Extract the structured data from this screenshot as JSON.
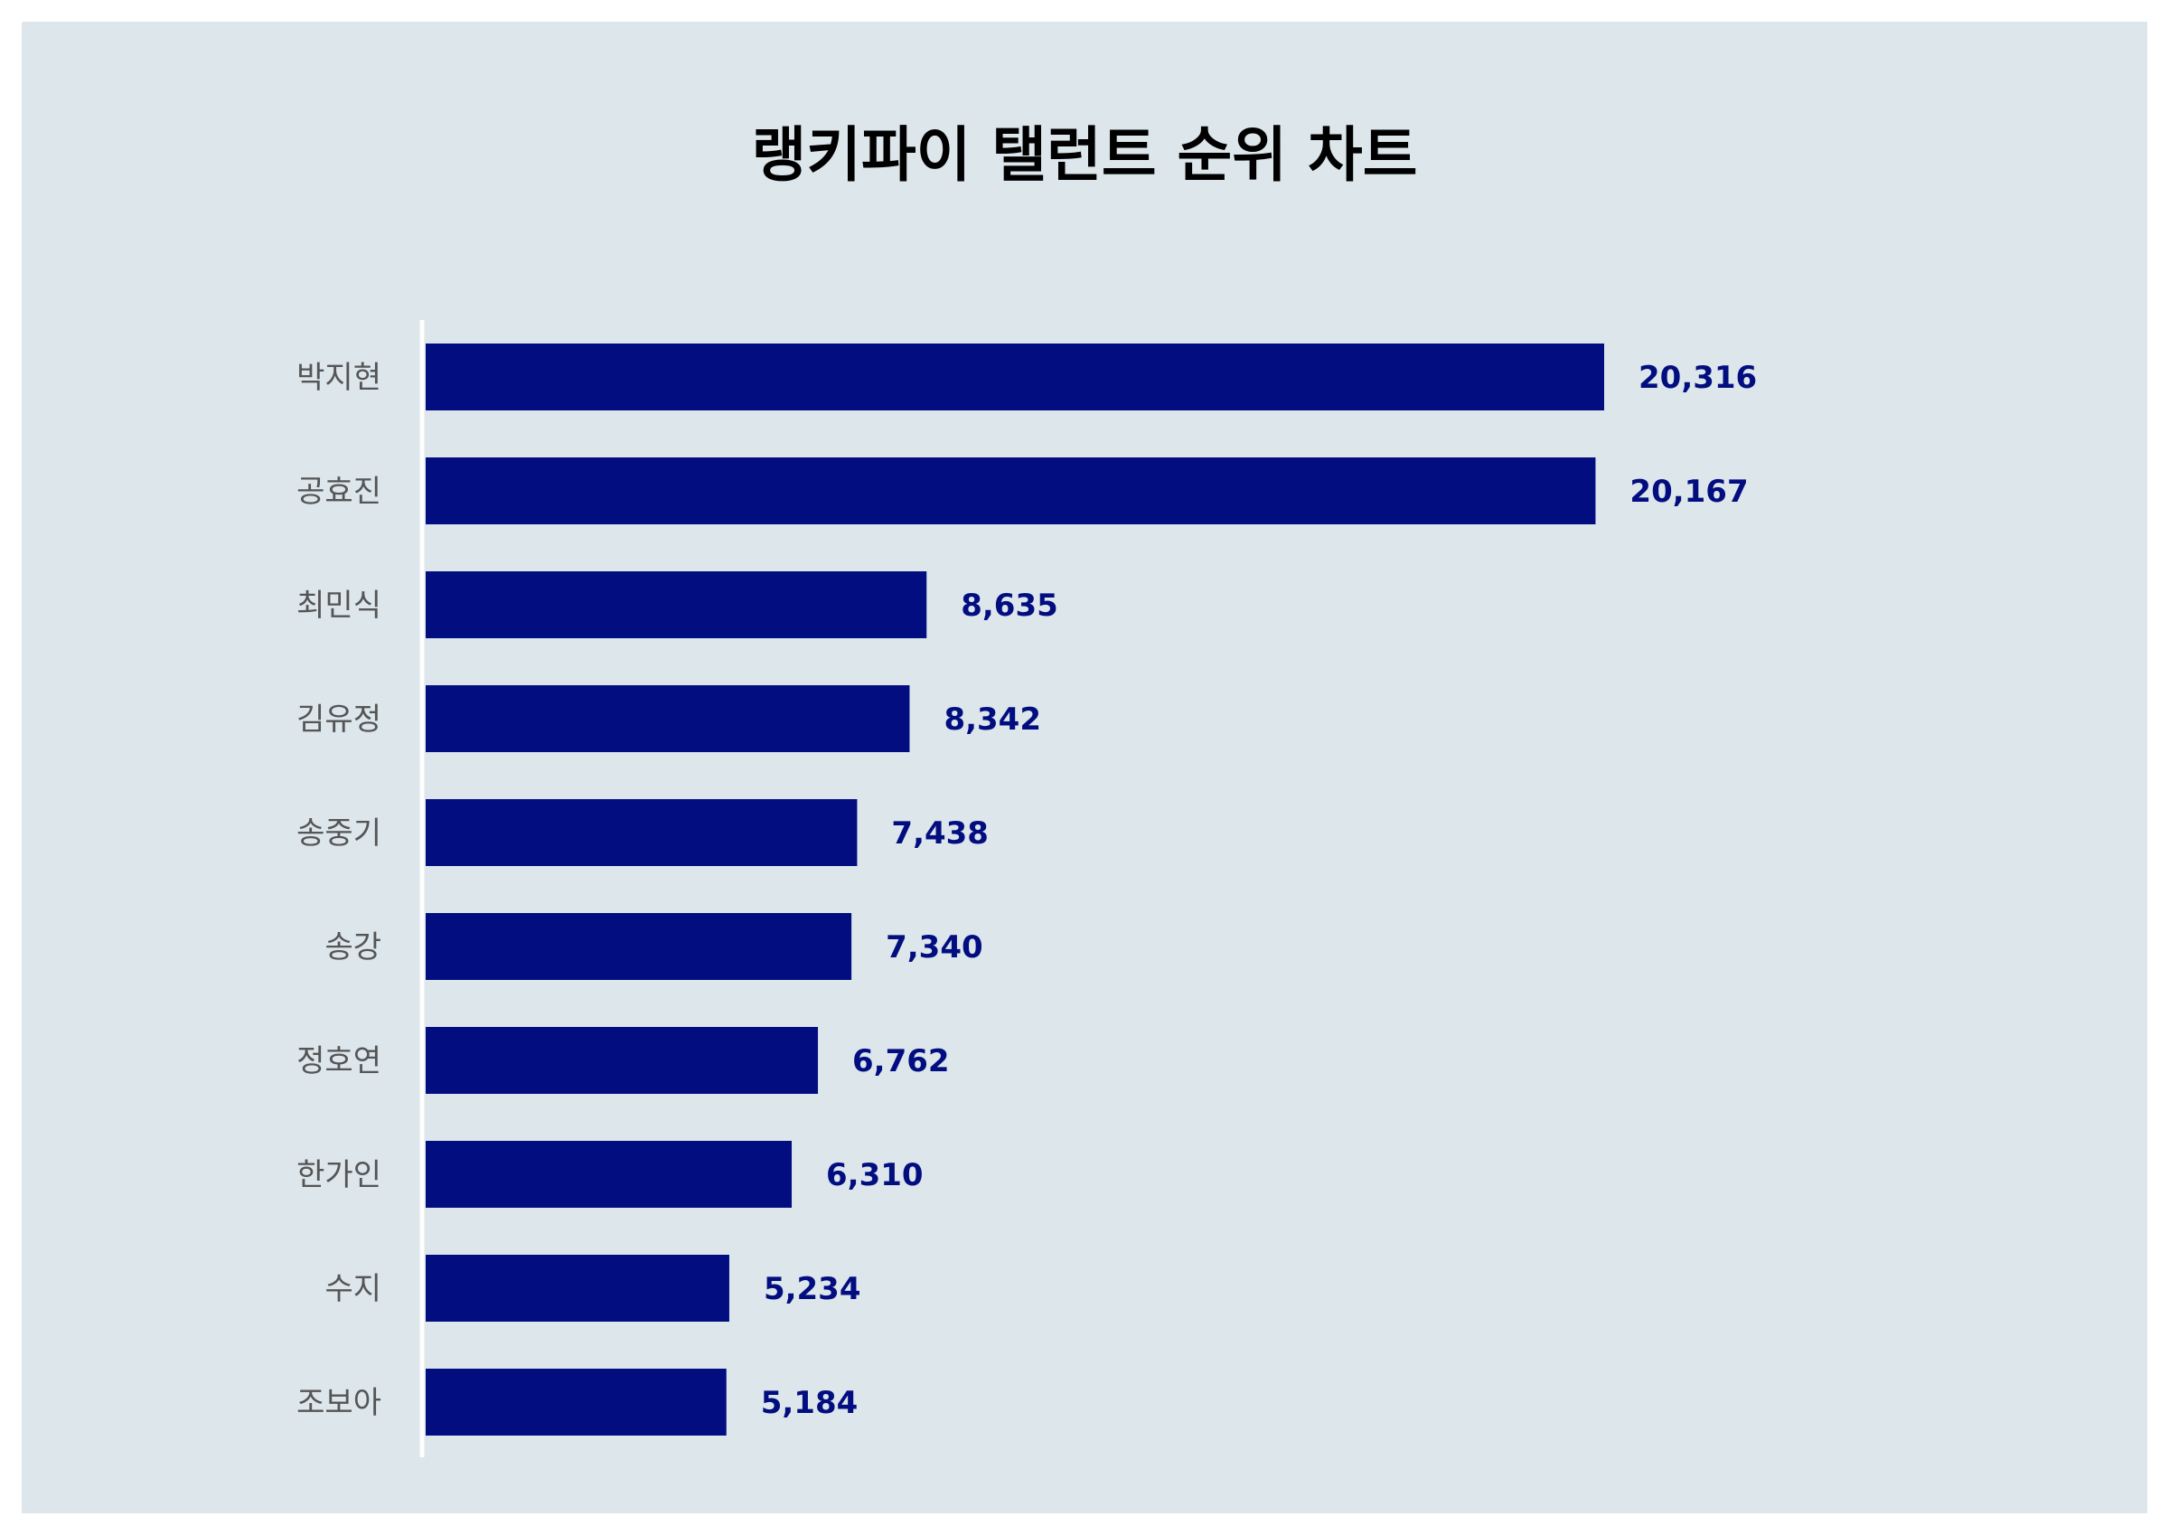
{
  "chart_data": {
    "type": "bar",
    "orientation": "horizontal",
    "title": "랭키파이 탤런트 순위 차트",
    "categories": [
      "박지현",
      "공효진",
      "최민식",
      "김유정",
      "송중기",
      "송강",
      "정호연",
      "한가인",
      "수지",
      "조보아"
    ],
    "values": [
      20316,
      20167,
      8635,
      8342,
      7438,
      7340,
      6762,
      6310,
      5234,
      5184
    ],
    "value_labels": [
      "20,316",
      "20,167",
      "8,635",
      "8,342",
      "7,438",
      "7,340",
      "6,762",
      "6,310",
      "5,234",
      "5,184"
    ],
    "xlim": [
      0,
      25000
    ],
    "grid": false,
    "legend": "none",
    "bar_color": "#020e80",
    "background_color": "#dce6eb",
    "axis_color": "#ffffff"
  }
}
